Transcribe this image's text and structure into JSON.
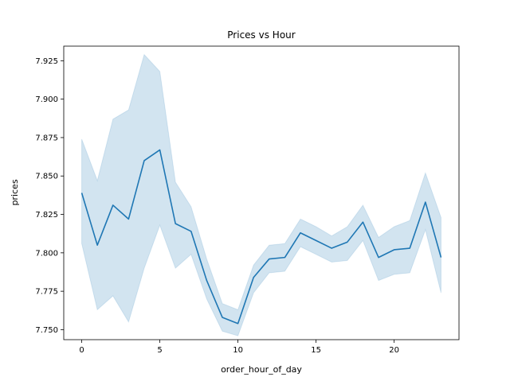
{
  "chart_data": {
    "type": "line",
    "title": "Prices vs Hour",
    "xlabel": "order_hour_of_day",
    "ylabel": "prices",
    "xlim": [
      -1.15,
      24.15
    ],
    "ylim": [
      7.7435,
      7.9345
    ],
    "xticks": [
      0,
      5,
      10,
      15,
      20
    ],
    "xtick_labels": [
      "0",
      "5",
      "10",
      "15",
      "20"
    ],
    "yticks": [
      7.75,
      7.775,
      7.8,
      7.825,
      7.85,
      7.875,
      7.9,
      7.925
    ],
    "ytick_labels": [
      "7.750",
      "7.775",
      "7.800",
      "7.825",
      "7.850",
      "7.875",
      "7.900",
      "7.925"
    ],
    "grid": false,
    "line_color": "#1f77b4",
    "band_color": "#1f77b4",
    "band_opacity": 0.2,
    "series": [
      {
        "x": [
          0,
          1,
          2,
          3,
          4,
          5,
          6,
          7,
          8,
          9,
          10,
          11,
          12,
          13,
          14,
          15,
          16,
          17,
          18,
          19,
          20,
          21,
          22,
          23
        ],
        "values": [
          7.839,
          7.805,
          7.831,
          7.822,
          7.86,
          7.867,
          7.819,
          7.814,
          7.782,
          7.758,
          7.754,
          7.784,
          7.796,
          7.797,
          7.813,
          7.808,
          7.803,
          7.807,
          7.82,
          7.797,
          7.802,
          7.803,
          7.833,
          7.797
        ],
        "ci_lower": [
          7.806,
          7.763,
          7.772,
          7.755,
          7.79,
          7.818,
          7.79,
          7.799,
          7.77,
          7.749,
          7.746,
          7.774,
          7.787,
          7.788,
          7.804,
          7.799,
          7.794,
          7.795,
          7.808,
          7.782,
          7.786,
          7.787,
          7.815,
          7.774
        ],
        "ci_upper": [
          7.874,
          7.847,
          7.887,
          7.893,
          7.929,
          7.918,
          7.846,
          7.83,
          7.796,
          7.767,
          7.763,
          7.792,
          7.805,
          7.806,
          7.822,
          7.817,
          7.811,
          7.817,
          7.831,
          7.81,
          7.817,
          7.821,
          7.852,
          7.823
        ]
      }
    ]
  }
}
